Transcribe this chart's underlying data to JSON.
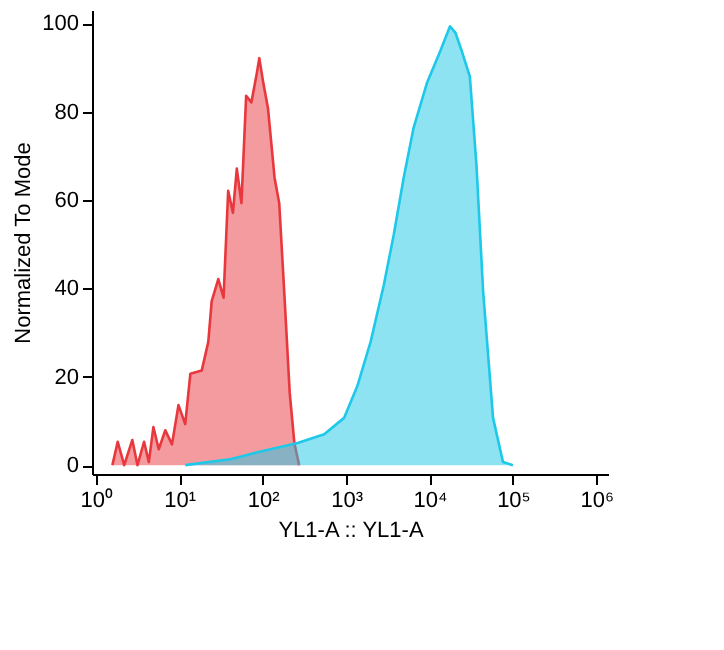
{
  "chart_data": {
    "type": "area",
    "xlabel": "YL1-A :: YL1-A",
    "ylabel": "Normalized To Mode",
    "log": "x",
    "xlim": [
      0.9,
      1380000
    ],
    "ylim": [
      -2,
      103
    ],
    "xticks": [
      {
        "value": 1,
        "label": "10⁰"
      },
      {
        "value": 10,
        "label": "10¹"
      },
      {
        "value": 100,
        "label": "10²"
      },
      {
        "value": 1000,
        "label": "10³"
      },
      {
        "value": 10000,
        "label": "10⁴"
      },
      {
        "value": 100000,
        "label": "10⁵"
      },
      {
        "value": 1000000,
        "label": "10⁶"
      }
    ],
    "yticks": [
      0,
      20,
      40,
      60,
      80,
      100
    ],
    "grid": false,
    "series": [
      {
        "color": "#e8383d",
        "x": [
          1.58,
          1.83,
          2.19,
          2.74,
          3.16,
          3.79,
          4.32,
          4.9,
          5.68,
          6.81,
          8.18,
          9.8,
          11.8,
          13.6,
          18.6,
          22.3,
          24.5,
          29.4,
          34,
          38.6,
          44,
          49,
          55.7,
          63.4,
          73.3,
          84.9,
          91.2,
          102,
          116,
          139,
          158,
          183,
          211,
          240,
          274
        ],
        "values": [
          0,
          5.3,
          0,
          5.7,
          0,
          5.3,
          0.7,
          8.6,
          3.6,
          7.9,
          4.7,
          13.6,
          9.3,
          20.7,
          21.4,
          27.9,
          37.1,
          42.1,
          37.9,
          62.1,
          57.1,
          67.1,
          59.3,
          83.6,
          82.1,
          88.6,
          92.1,
          86.4,
          80.7,
          65,
          59.3,
          37.9,
          16.4,
          5,
          0
        ]
      },
      {
        "color": "#1ec8e8",
        "x": [
          11.8,
          42.4,
          86.5,
          263,
          547,
          946,
          1365,
          1968,
          2831,
          3724,
          4898,
          6457,
          9290,
          13400,
          17620,
          20420,
          24490,
          30480,
          36560,
          43950,
          57810,
          76030,
          100000
        ],
        "values": [
          0,
          1.4,
          2.9,
          5,
          7,
          10.7,
          17.9,
          27.9,
          40.7,
          52.1,
          65,
          76.4,
          86.4,
          93.6,
          99.3,
          97.9,
          93.6,
          87.9,
          67.9,
          39.3,
          10.7,
          0.7,
          0
        ]
      }
    ]
  }
}
